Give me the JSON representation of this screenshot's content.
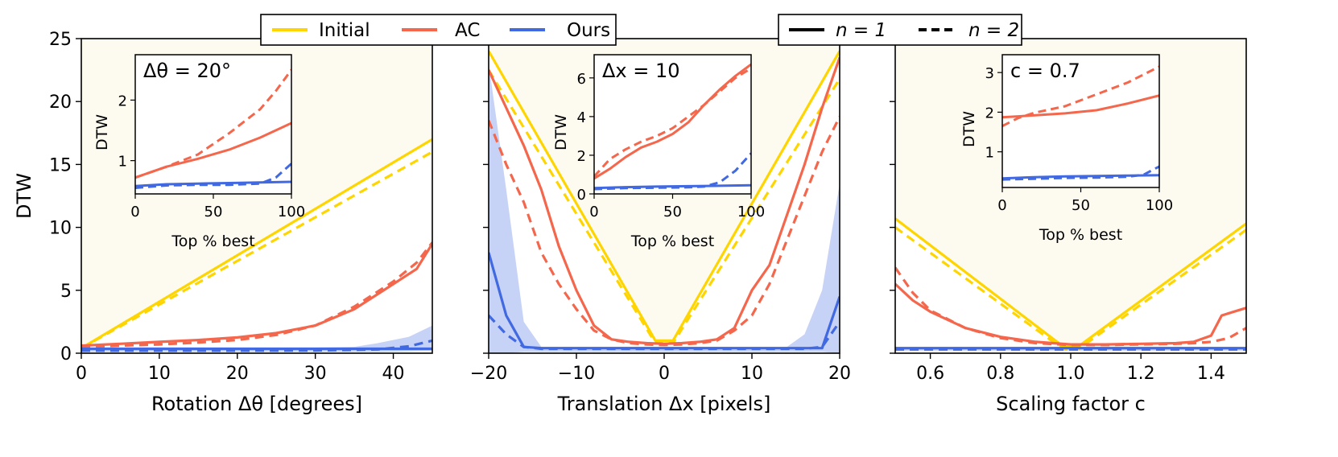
{
  "chart_data": [
    {
      "type": "line",
      "id": "rotation",
      "xlabel": "Rotation Δθ [degrees]",
      "ylabel": "DTW",
      "xlim": [
        0,
        45
      ],
      "ylim": [
        0,
        25
      ],
      "xticks": [
        0,
        10,
        20,
        30,
        40
      ],
      "xtick_labels": [
        "0",
        "10",
        "20",
        "30",
        "40"
      ],
      "yticks": [
        0,
        5,
        10,
        15,
        20,
        25
      ],
      "ytick_labels": [
        "0",
        "5",
        "10",
        "15",
        "20",
        "25"
      ],
      "background": "shaded above Initial",
      "series": [
        {
          "name": "Initial",
          "style": "solid",
          "color": "#ffd500",
          "x": [
            0,
            45
          ],
          "y": [
            0.4,
            17.0
          ]
        },
        {
          "name": "Initial",
          "style": "dashed",
          "color": "#ffd500",
          "x": [
            0,
            45
          ],
          "y": [
            0.4,
            16.0
          ]
        },
        {
          "name": "AC",
          "style": "solid",
          "color": "#f4674c",
          "x": [
            0,
            5,
            10,
            15,
            20,
            25,
            30,
            35,
            40,
            43,
            45
          ],
          "y": [
            0.6,
            0.75,
            0.9,
            1.05,
            1.25,
            1.6,
            2.2,
            3.5,
            5.5,
            6.7,
            8.7
          ]
        },
        {
          "name": "AC",
          "style": "dashed",
          "color": "#f4674c",
          "x": [
            0,
            5,
            10,
            15,
            20,
            25,
            30,
            35,
            40,
            43,
            45
          ],
          "y": [
            0.5,
            0.6,
            0.7,
            0.85,
            1.05,
            1.45,
            2.2,
            3.7,
            5.7,
            7.2,
            8.8
          ]
        },
        {
          "name": "Ours",
          "style": "solid",
          "color": "#4169e1",
          "x": [
            0,
            10,
            20,
            30,
            40,
            45
          ],
          "y": [
            0.35,
            0.35,
            0.35,
            0.35,
            0.35,
            0.35
          ]
        },
        {
          "name": "Ours",
          "style": "dashed",
          "color": "#4169e1",
          "x": [
            0,
            10,
            20,
            30,
            38,
            42,
            45
          ],
          "y": [
            0.2,
            0.2,
            0.2,
            0.22,
            0.3,
            0.55,
            1.0
          ]
        }
      ],
      "band": {
        "x": [
          0,
          10,
          20,
          30,
          35,
          38,
          42,
          45
        ],
        "lower": [
          0.1,
          0.1,
          0.1,
          0.1,
          0.1,
          0.1,
          0.15,
          0.2
        ],
        "upper": [
          0.45,
          0.45,
          0.45,
          0.45,
          0.5,
          0.8,
          1.3,
          2.2
        ]
      },
      "inset": {
        "label": "Δθ = 20°",
        "xlabel": "Top % best",
        "ylabel": "DTW",
        "xlim": [
          0,
          100
        ],
        "ylim": [
          0.45,
          2.75
        ],
        "xticks": [
          0,
          50,
          100
        ],
        "xtick_labels": [
          "0",
          "50",
          "100"
        ],
        "yticks": [
          1,
          2
        ],
        "ytick_labels": [
          "1",
          "2"
        ],
        "series": [
          {
            "name": "AC",
            "style": "solid",
            "color": "#f4674c",
            "x": [
              0,
              20,
              40,
              60,
              80,
              100
            ],
            "y": [
              0.72,
              0.9,
              1.03,
              1.18,
              1.38,
              1.62
            ]
          },
          {
            "name": "AC",
            "style": "dashed",
            "color": "#f4674c",
            "x": [
              0,
              20,
              40,
              60,
              80,
              90,
              100
            ],
            "y": [
              0.72,
              0.9,
              1.1,
              1.45,
              1.85,
              2.15,
              2.5
            ]
          },
          {
            "name": "Ours",
            "style": "solid",
            "color": "#4169e1",
            "x": [
              0,
              20,
              40,
              60,
              80,
              100
            ],
            "y": [
              0.58,
              0.61,
              0.62,
              0.63,
              0.64,
              0.65
            ]
          },
          {
            "name": "Ours",
            "style": "dashed",
            "color": "#4169e1",
            "x": [
              0,
              20,
              40,
              60,
              80,
              90,
              100
            ],
            "y": [
              0.55,
              0.59,
              0.6,
              0.6,
              0.62,
              0.72,
              0.95
            ]
          }
        ]
      }
    },
    {
      "type": "line",
      "id": "translation",
      "xlabel": "Translation Δx [pixels]",
      "ylabel": "",
      "xlim": [
        -20,
        20
      ],
      "ylim": [
        0,
        25
      ],
      "xticks": [
        -20,
        -10,
        0,
        10,
        20
      ],
      "xtick_labels": [
        "−20",
        "−10",
        "0",
        "10",
        "20"
      ],
      "yticks": [
        0,
        5,
        10,
        15,
        20,
        25
      ],
      "ytick_labels": [],
      "background": "shaded above Initial",
      "series": [
        {
          "name": "Initial",
          "style": "solid",
          "color": "#ffd500",
          "x": [
            -20,
            -1,
            1,
            20
          ],
          "y": [
            24.0,
            1.0,
            1.0,
            24.0
          ]
        },
        {
          "name": "Initial",
          "style": "dashed",
          "color": "#ffd500",
          "x": [
            -20,
            -1,
            1,
            20
          ],
          "y": [
            22.5,
            0.8,
            0.8,
            21.8
          ]
        },
        {
          "name": "AC",
          "style": "solid",
          "color": "#f4674c",
          "x": [
            -20,
            -18,
            -16,
            -14,
            -12,
            -10,
            -8,
            -6,
            -4,
            -2,
            0,
            2,
            4,
            6,
            8,
            10,
            12,
            14,
            16,
            18,
            20
          ],
          "y": [
            22.5,
            19.5,
            16.5,
            13.0,
            8.5,
            5.0,
            2.2,
            1.1,
            0.9,
            0.8,
            0.75,
            0.8,
            0.9,
            1.1,
            2.0,
            5.0,
            7.0,
            11.0,
            15.0,
            19.5,
            23.5
          ]
        },
        {
          "name": "AC",
          "style": "dashed",
          "color": "#f4674c",
          "x": [
            -20,
            -18,
            -16,
            -14,
            -12,
            -10,
            -8,
            -6,
            -4,
            -2,
            0,
            2,
            4,
            6,
            8,
            10,
            12,
            14,
            16,
            18,
            20
          ],
          "y": [
            18.5,
            15.0,
            12.0,
            8.0,
            5.5,
            3.5,
            1.8,
            1.1,
            0.8,
            0.7,
            0.65,
            0.7,
            0.8,
            1.0,
            1.8,
            3.0,
            5.5,
            9.0,
            12.5,
            16.0,
            18.8
          ]
        },
        {
          "name": "Ours",
          "style": "solid",
          "color": "#4169e1",
          "x": [
            -20,
            -18,
            -16,
            -14,
            -10,
            0,
            10,
            14,
            16,
            18,
            20
          ],
          "y": [
            8.0,
            3.0,
            0.5,
            0.4,
            0.4,
            0.4,
            0.4,
            0.4,
            0.4,
            0.4,
            4.5
          ]
        },
        {
          "name": "Ours",
          "style": "dashed",
          "color": "#4169e1",
          "x": [
            -20,
            -18,
            -16,
            -14,
            -10,
            0,
            10,
            14,
            16,
            18,
            20
          ],
          "y": [
            3.0,
            1.5,
            0.5,
            0.35,
            0.35,
            0.35,
            0.35,
            0.35,
            0.35,
            0.5,
            2.5
          ]
        }
      ],
      "band": {
        "x": [
          -20,
          -18,
          -16,
          -14,
          -10,
          0,
          10,
          14,
          16,
          18,
          20
        ],
        "lower": [
          0.0,
          0.0,
          0.1,
          0.1,
          0.1,
          0.1,
          0.1,
          0.1,
          0.1,
          0.1,
          0.0
        ],
        "upper": [
          23.0,
          13.0,
          2.5,
          0.5,
          0.5,
          0.5,
          0.5,
          0.5,
          1.5,
          5.0,
          13.5
        ]
      },
      "inset": {
        "label": "Δx = 10",
        "xlabel": "Top % best",
        "ylabel": "DTW",
        "xlim": [
          0,
          100
        ],
        "ylim": [
          0.0,
          7.2
        ],
        "xticks": [
          0,
          50,
          100
        ],
        "xtick_labels": [
          "0",
          "50",
          "100"
        ],
        "yticks": [
          0,
          2,
          4,
          6
        ],
        "ytick_labels": [
          "0",
          "2",
          "4",
          "6"
        ],
        "series": [
          {
            "name": "AC",
            "style": "solid",
            "color": "#f4674c",
            "x": [
              0,
              10,
              20,
              30,
              40,
              50,
              60,
              70,
              80,
              90,
              100
            ],
            "y": [
              0.8,
              1.3,
              1.9,
              2.4,
              2.7,
              3.1,
              3.7,
              4.6,
              5.4,
              6.1,
              6.7
            ]
          },
          {
            "name": "AC",
            "style": "dashed",
            "color": "#f4674c",
            "x": [
              0,
              10,
              20,
              30,
              40,
              50,
              60,
              70,
              80,
              90,
              100
            ],
            "y": [
              0.9,
              1.8,
              2.3,
              2.7,
              3.0,
              3.4,
              4.0,
              4.6,
              5.3,
              6.0,
              6.5
            ]
          },
          {
            "name": "Ours",
            "style": "solid",
            "color": "#4169e1",
            "x": [
              0,
              20,
              40,
              60,
              80,
              100
            ],
            "y": [
              0.3,
              0.35,
              0.38,
              0.4,
              0.42,
              0.45
            ]
          },
          {
            "name": "Ours",
            "style": "dashed",
            "color": "#4169e1",
            "x": [
              0,
              20,
              40,
              60,
              70,
              80,
              90,
              100
            ],
            "y": [
              0.25,
              0.3,
              0.32,
              0.34,
              0.38,
              0.6,
              1.2,
              2.1
            ]
          }
        ]
      }
    },
    {
      "type": "line",
      "id": "scaling",
      "xlabel": "Scaling factor c",
      "ylabel": "",
      "xlim": [
        0.5,
        1.5
      ],
      "ylim": [
        0,
        25
      ],
      "xticks": [
        0.6,
        0.8,
        1.0,
        1.2,
        1.4
      ],
      "xtick_labels": [
        "0.6",
        "0.8",
        "1.0",
        "1.2",
        "1.4"
      ],
      "yticks": [
        0,
        5,
        10,
        15,
        20,
        25
      ],
      "ytick_labels": [],
      "background": "shaded above Initial",
      "series": [
        {
          "name": "Initial",
          "style": "solid",
          "color": "#ffd500",
          "x": [
            0.5,
            0.98,
            1.02,
            1.5
          ],
          "y": [
            10.7,
            0.5,
            0.5,
            10.3
          ]
        },
        {
          "name": "Initial",
          "style": "dashed",
          "color": "#ffd500",
          "x": [
            0.5,
            0.98,
            1.02,
            1.5
          ],
          "y": [
            10.0,
            0.3,
            0.3,
            9.8
          ]
        },
        {
          "name": "AC",
          "style": "solid",
          "color": "#f4674c",
          "x": [
            0.5,
            0.55,
            0.6,
            0.7,
            0.8,
            0.9,
            1.0,
            1.1,
            1.2,
            1.3,
            1.35,
            1.4,
            1.43,
            1.5
          ],
          "y": [
            5.5,
            4.2,
            3.3,
            2.0,
            1.3,
            0.9,
            0.7,
            0.7,
            0.75,
            0.8,
            0.9,
            1.4,
            3.0,
            3.6
          ]
        },
        {
          "name": "AC",
          "style": "dashed",
          "color": "#f4674c",
          "x": [
            0.5,
            0.55,
            0.6,
            0.7,
            0.8,
            0.9,
            1.0,
            1.1,
            1.2,
            1.3,
            1.35,
            1.4,
            1.45,
            1.5
          ],
          "y": [
            6.8,
            4.8,
            3.4,
            2.0,
            1.2,
            0.8,
            0.65,
            0.65,
            0.7,
            0.75,
            0.8,
            0.9,
            1.2,
            2.0
          ]
        },
        {
          "name": "Ours",
          "style": "solid",
          "color": "#4169e1",
          "x": [
            0.5,
            1.0,
            1.5
          ],
          "y": [
            0.4,
            0.4,
            0.4
          ]
        },
        {
          "name": "Ours",
          "style": "dashed",
          "color": "#4169e1",
          "x": [
            0.5,
            1.0,
            1.5
          ],
          "y": [
            0.3,
            0.3,
            0.3
          ]
        }
      ],
      "band": {
        "x": [
          0.5,
          1.0,
          1.5
        ],
        "lower": [
          0.2,
          0.2,
          0.2
        ],
        "upper": [
          0.5,
          0.5,
          0.5
        ]
      },
      "inset": {
        "label": "c = 0.7",
        "xlabel": "Top % best",
        "ylabel": "DTW",
        "xlim": [
          0,
          100
        ],
        "ylim": [
          0.1,
          3.45
        ],
        "xticks": [
          0,
          50,
          100
        ],
        "xtick_labels": [
          "0",
          "50",
          "100"
        ],
        "yticks": [
          1,
          2,
          3
        ],
        "ytick_labels": [
          "1",
          "2",
          "3"
        ],
        "series": [
          {
            "name": "AC",
            "style": "solid",
            "color": "#f4674c",
            "x": [
              0,
              20,
              40,
              60,
              80,
              100
            ],
            "y": [
              1.87,
              1.92,
              1.97,
              2.05,
              2.22,
              2.42
            ]
          },
          {
            "name": "AC",
            "style": "dashed",
            "color": "#f4674c",
            "x": [
              0,
              10,
              20,
              40,
              60,
              80,
              100
            ],
            "y": [
              1.65,
              1.85,
              1.98,
              2.15,
              2.45,
              2.75,
              3.15
            ]
          },
          {
            "name": "Ours",
            "style": "solid",
            "color": "#4169e1",
            "x": [
              0,
              20,
              40,
              60,
              80,
              100
            ],
            "y": [
              0.33,
              0.36,
              0.38,
              0.39,
              0.4,
              0.41
            ]
          },
          {
            "name": "Ours",
            "style": "dashed",
            "color": "#4169e1",
            "x": [
              0,
              20,
              40,
              60,
              80,
              90,
              100
            ],
            "y": [
              0.3,
              0.32,
              0.34,
              0.35,
              0.37,
              0.42,
              0.63
            ]
          }
        ]
      }
    }
  ],
  "legend_methods": [
    {
      "label": "Initial",
      "color": "#ffd500"
    },
    {
      "label": "AC",
      "color": "#f4674c"
    },
    {
      "label": "Ours",
      "color": "#4169e1"
    }
  ],
  "legend_styles": [
    {
      "label": "n = 1",
      "style": "solid"
    },
    {
      "label": "n = 2",
      "style": "dashed"
    }
  ],
  "colors": {
    "initial": "#ffd500",
    "ac": "#f4674c",
    "ours": "#4169e1",
    "band": "#4169e1",
    "shade": "#fdfaf0"
  }
}
